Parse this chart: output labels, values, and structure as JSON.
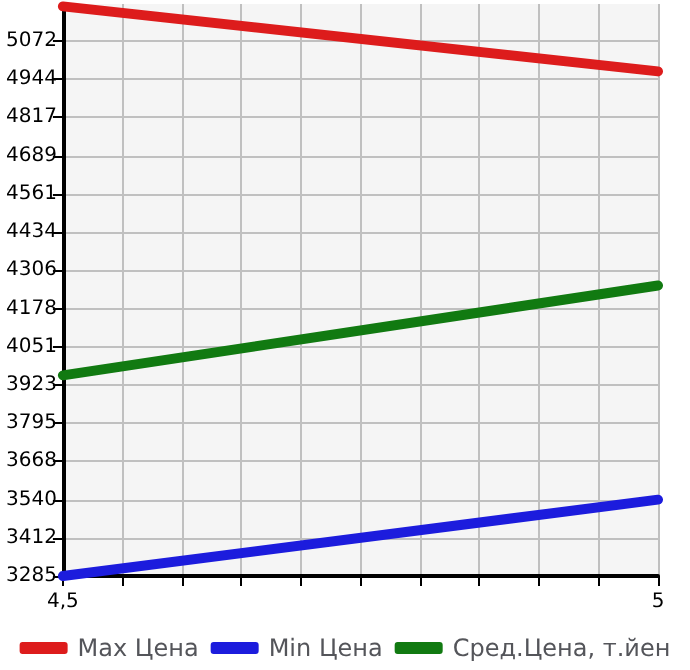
{
  "chart_data": {
    "type": "line",
    "x": [
      4.5,
      5
    ],
    "series": [
      {
        "name": "Max Цена",
        "color": "#dd1c1c",
        "values": [
          5187,
          4970
        ]
      },
      {
        "name": "Min Цена",
        "color": "#1c1cdd",
        "values": [
          3285,
          3540
        ]
      },
      {
        "name": "Сред.Цена, т.йен",
        "color": "#117a11",
        "values": [
          3955,
          4255
        ]
      }
    ],
    "xlim": [
      4.5,
      5
    ],
    "xticks": [
      {
        "value": 4.5,
        "label": "4,5"
      },
      {
        "value": 4.55,
        "label": null
      },
      {
        "value": 4.6,
        "label": null
      },
      {
        "value": 4.65,
        "label": null
      },
      {
        "value": 4.7,
        "label": null
      },
      {
        "value": 4.75,
        "label": null
      },
      {
        "value": 4.8,
        "label": null
      },
      {
        "value": 4.85,
        "label": null
      },
      {
        "value": 4.9,
        "label": null
      },
      {
        "value": 4.95,
        "label": null
      },
      5
    ],
    "ylim": [
      3285,
      5195
    ],
    "yticks": [
      3285,
      3412,
      3540,
      3668,
      3795,
      3923,
      4051,
      4178,
      4306,
      4434,
      4561,
      4689,
      4817,
      4944,
      5072
    ],
    "grid": true,
    "legend": "bottom",
    "marker": "none",
    "line_style": "solid"
  }
}
